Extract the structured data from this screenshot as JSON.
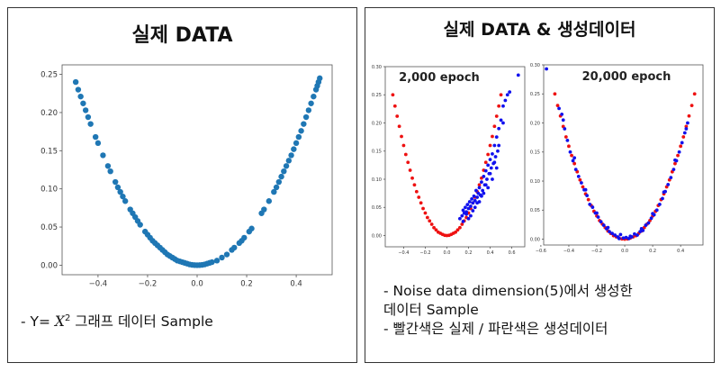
{
  "left_panel": {
    "title": "실제 DATA",
    "caption": {
      "prefix": "- Y= ",
      "math_var": "X",
      "math_exp": "2",
      "rest": " 그래프 데이터 Sample"
    }
  },
  "right_panel": {
    "title": "실제 DATA & 생성데이터",
    "caption_lines": [
      "- Noise data dimension(5)에서 생성한",
      "데이터 Sample",
      "- 빨간색은 실제 / 파란색은 생성데이터"
    ]
  },
  "colors": {
    "real": "#ee1111",
    "generated": "#1111ee",
    "sample": "#1f77b4"
  },
  "chart_data": [
    {
      "id": "real-data",
      "type": "scatter",
      "title": "",
      "xlim": [
        -0.545,
        0.545
      ],
      "ylim": [
        -0.0125,
        0.2625
      ],
      "x_ticks": [
        -0.4,
        -0.2,
        0.0,
        0.2,
        0.4
      ],
      "x_tick_labels": [
        "−0.4",
        "−0.2",
        "0.0",
        "0.2",
        "0.4"
      ],
      "y_ticks": [
        0.0,
        0.05,
        0.1,
        0.15,
        0.2,
        0.25
      ],
      "y_tick_labels": [
        "0.00",
        "0.05",
        "0.10",
        "0.15",
        "0.20",
        "0.25"
      ],
      "series": [
        {
          "name": "Y = X^2 sample",
          "color": "#1f77b4",
          "x": [
            -0.49,
            -0.48,
            -0.47,
            -0.46,
            -0.45,
            -0.44,
            -0.43,
            -0.41,
            -0.4,
            -0.38,
            -0.36,
            -0.35,
            -0.33,
            -0.32,
            -0.31,
            -0.3,
            -0.29,
            -0.27,
            -0.26,
            -0.25,
            -0.24,
            -0.23,
            -0.21,
            -0.2,
            -0.19,
            -0.18,
            -0.17,
            -0.16,
            -0.15,
            -0.14,
            -0.13,
            -0.12,
            -0.11,
            -0.1,
            -0.09,
            -0.08,
            -0.07,
            -0.06,
            -0.05,
            -0.04,
            -0.03,
            -0.02,
            -0.01,
            0.0,
            0.01,
            0.02,
            0.03,
            0.04,
            0.05,
            0.06,
            0.08,
            0.1,
            0.12,
            0.14,
            0.15,
            0.17,
            0.18,
            0.19,
            0.21,
            0.22,
            0.26,
            0.27,
            0.29,
            0.31,
            0.32,
            0.33,
            0.34,
            0.35,
            0.36,
            0.37,
            0.38,
            0.39,
            0.4,
            0.41,
            0.42,
            0.43,
            0.44,
            0.45,
            0.46,
            0.47,
            0.48,
            0.485,
            0.49,
            0.495
          ],
          "y": [
            0.24,
            0.23,
            0.221,
            0.212,
            0.203,
            0.194,
            0.185,
            0.168,
            0.16,
            0.144,
            0.13,
            0.123,
            0.109,
            0.102,
            0.096,
            0.09,
            0.084,
            0.073,
            0.068,
            0.063,
            0.058,
            0.053,
            0.044,
            0.04,
            0.036,
            0.032,
            0.029,
            0.026,
            0.023,
            0.02,
            0.017,
            0.014,
            0.012,
            0.01,
            0.008,
            0.006,
            0.005,
            0.004,
            0.003,
            0.002,
            0.001,
            0.0004,
            0.0001,
            0.0,
            0.0001,
            0.0004,
            0.001,
            0.002,
            0.003,
            0.004,
            0.006,
            0.01,
            0.014,
            0.02,
            0.023,
            0.029,
            0.032,
            0.036,
            0.044,
            0.048,
            0.068,
            0.073,
            0.084,
            0.096,
            0.102,
            0.109,
            0.116,
            0.123,
            0.13,
            0.137,
            0.144,
            0.152,
            0.16,
            0.168,
            0.176,
            0.185,
            0.194,
            0.203,
            0.212,
            0.221,
            0.23,
            0.235,
            0.24,
            0.245
          ]
        }
      ]
    },
    {
      "id": "gan-2000",
      "type": "scatter",
      "title": "2,000 epoch",
      "xlim": [
        -0.57,
        0.72
      ],
      "ylim": [
        -0.02,
        0.3
      ],
      "x_ticks": [
        -0.4,
        -0.2,
        0.0,
        0.2,
        0.4,
        0.6
      ],
      "x_tick_labels": [
        "−0.4",
        "−0.2",
        "0.0",
        "0.2",
        "0.4",
        "0.6"
      ],
      "y_ticks": [
        0.0,
        0.05,
        0.1,
        0.15,
        0.2,
        0.25,
        0.3
      ],
      "y_tick_labels": [
        "0.00",
        "0.05",
        "0.10",
        "0.15",
        "0.20",
        "0.25",
        "0.30"
      ],
      "series": [
        {
          "name": "real",
          "color": "#ee1111",
          "x": [
            -0.5,
            -0.48,
            -0.46,
            -0.44,
            -0.42,
            -0.4,
            -0.38,
            -0.36,
            -0.34,
            -0.32,
            -0.3,
            -0.28,
            -0.26,
            -0.24,
            -0.22,
            -0.2,
            -0.18,
            -0.16,
            -0.14,
            -0.12,
            -0.1,
            -0.08,
            -0.06,
            -0.04,
            -0.02,
            0.0,
            0.02,
            0.04,
            0.06,
            0.08,
            0.1,
            0.12,
            0.14,
            0.16,
            0.18,
            0.2,
            0.22,
            0.24,
            0.26,
            0.28,
            0.3,
            0.32,
            0.34,
            0.36,
            0.38,
            0.4,
            0.42,
            0.44,
            0.46,
            0.48,
            0.5
          ],
          "y": [
            0.25,
            0.23,
            0.212,
            0.194,
            0.176,
            0.16,
            0.144,
            0.13,
            0.116,
            0.102,
            0.09,
            0.078,
            0.068,
            0.058,
            0.048,
            0.04,
            0.032,
            0.026,
            0.02,
            0.014,
            0.01,
            0.006,
            0.004,
            0.002,
            0.0004,
            0.0,
            0.0004,
            0.002,
            0.004,
            0.006,
            0.01,
            0.014,
            0.02,
            0.026,
            0.032,
            0.04,
            0.048,
            0.058,
            0.068,
            0.078,
            0.09,
            0.102,
            0.116,
            0.13,
            0.144,
            0.16,
            0.176,
            0.194,
            0.212,
            0.23,
            0.25
          ]
        },
        {
          "name": "generated",
          "color": "#1111ee",
          "x": [
            0.12,
            0.14,
            0.15,
            0.16,
            0.17,
            0.18,
            0.19,
            0.2,
            0.21,
            0.22,
            0.23,
            0.24,
            0.25,
            0.26,
            0.27,
            0.28,
            0.29,
            0.3,
            0.31,
            0.32,
            0.33,
            0.34,
            0.35,
            0.36,
            0.37,
            0.38,
            0.39,
            0.4,
            0.41,
            0.42,
            0.43,
            0.44,
            0.45,
            0.46,
            0.47,
            0.48,
            0.5,
            0.52,
            0.54,
            0.56,
            0.58,
            0.66,
            0.15,
            0.18,
            0.22,
            0.26,
            0.3,
            0.34,
            0.38,
            0.42,
            0.46,
            0.2,
            0.24,
            0.28,
            0.32,
            0.36,
            0.4,
            0.44,
            0.48,
            0.52
          ],
          "y": [
            0.03,
            0.035,
            0.045,
            0.04,
            0.05,
            0.042,
            0.055,
            0.048,
            0.06,
            0.052,
            0.065,
            0.058,
            0.07,
            0.062,
            0.08,
            0.068,
            0.075,
            0.085,
            0.072,
            0.095,
            0.08,
            0.105,
            0.09,
            0.115,
            0.1,
            0.125,
            0.11,
            0.135,
            0.12,
            0.145,
            0.128,
            0.16,
            0.14,
            0.175,
            0.15,
            0.19,
            0.205,
            0.23,
            0.24,
            0.25,
            0.255,
            0.285,
            0.025,
            0.038,
            0.035,
            0.05,
            0.06,
            0.075,
            0.085,
            0.1,
            0.12,
            0.03,
            0.044,
            0.058,
            0.07,
            0.09,
            0.11,
            0.13,
            0.16,
            0.2
          ]
        }
      ]
    },
    {
      "id": "gan-20000",
      "type": "scatter",
      "title": "20,000 epoch",
      "xlim": [
        -0.58,
        0.56
      ],
      "ylim": [
        -0.01,
        0.3
      ],
      "x_ticks": [
        -0.6,
        -0.4,
        -0.2,
        0.0,
        0.2,
        0.4
      ],
      "x_tick_labels": [
        "−0.6",
        "−0.4",
        "−0.2",
        "0.0",
        "0.2",
        "0.4"
      ],
      "y_ticks": [
        0.0,
        0.05,
        0.1,
        0.15,
        0.2,
        0.25,
        0.3
      ],
      "y_tick_labels": [
        "0.00",
        "0.05",
        "0.10",
        "0.15",
        "0.20",
        "0.25",
        "0.30"
      ],
      "series": [
        {
          "name": "real",
          "color": "#ee1111",
          "x": [
            -0.5,
            -0.48,
            -0.46,
            -0.44,
            -0.42,
            -0.4,
            -0.38,
            -0.36,
            -0.34,
            -0.32,
            -0.3,
            -0.28,
            -0.26,
            -0.24,
            -0.22,
            -0.2,
            -0.18,
            -0.16,
            -0.14,
            -0.12,
            -0.1,
            -0.08,
            -0.06,
            -0.04,
            -0.02,
            0.0,
            0.02,
            0.04,
            0.06,
            0.08,
            0.1,
            0.12,
            0.14,
            0.16,
            0.18,
            0.2,
            0.22,
            0.24,
            0.26,
            0.28,
            0.3,
            0.32,
            0.34,
            0.36,
            0.38,
            0.4,
            0.42,
            0.44,
            0.46,
            0.48,
            0.5
          ],
          "y": [
            0.25,
            0.23,
            0.212,
            0.194,
            0.176,
            0.16,
            0.144,
            0.13,
            0.116,
            0.102,
            0.09,
            0.078,
            0.068,
            0.058,
            0.048,
            0.04,
            0.032,
            0.026,
            0.02,
            0.014,
            0.01,
            0.006,
            0.004,
            0.002,
            0.0004,
            0.0,
            0.0004,
            0.002,
            0.004,
            0.006,
            0.01,
            0.014,
            0.02,
            0.026,
            0.032,
            0.04,
            0.048,
            0.058,
            0.068,
            0.078,
            0.09,
            0.102,
            0.116,
            0.13,
            0.144,
            0.16,
            0.176,
            0.194,
            0.212,
            0.23,
            0.25
          ]
        },
        {
          "name": "generated",
          "color": "#1111ee",
          "x": [
            -0.56,
            -0.47,
            -0.45,
            -0.43,
            -0.41,
            -0.39,
            -0.37,
            -0.35,
            -0.33,
            -0.31,
            -0.29,
            -0.27,
            -0.25,
            -0.23,
            -0.21,
            -0.19,
            -0.17,
            -0.15,
            -0.13,
            -0.11,
            -0.09,
            -0.07,
            -0.05,
            -0.03,
            -0.01,
            0.01,
            0.03,
            0.05,
            0.07,
            0.09,
            0.11,
            0.13,
            0.15,
            0.17,
            0.19,
            0.21,
            0.23,
            0.25,
            0.27,
            0.29,
            0.31,
            0.33,
            0.35,
            0.37,
            0.39,
            0.41,
            0.43,
            0.45,
            -0.44,
            -0.36,
            -0.28,
            -0.2,
            -0.12,
            -0.04,
            0.04,
            0.12,
            0.2,
            0.28,
            0.36,
            0.44
          ],
          "y": [
            0.293,
            0.225,
            0.215,
            0.19,
            0.17,
            0.15,
            0.135,
            0.12,
            0.108,
            0.097,
            0.085,
            0.075,
            0.06,
            0.055,
            0.045,
            0.038,
            0.03,
            0.024,
            0.018,
            0.013,
            0.01,
            0.007,
            0.004,
            0.008,
            0.002,
            0.003,
            0.001,
            0.004,
            0.009,
            0.007,
            0.013,
            0.015,
            0.024,
            0.028,
            0.036,
            0.042,
            0.05,
            0.06,
            0.07,
            0.082,
            0.094,
            0.106,
            0.12,
            0.135,
            0.15,
            0.166,
            0.183,
            0.2,
            0.205,
            0.14,
            0.085,
            0.045,
            0.02,
            0.001,
            0.005,
            0.018,
            0.044,
            0.081,
            0.136,
            0.19
          ]
        }
      ]
    }
  ]
}
